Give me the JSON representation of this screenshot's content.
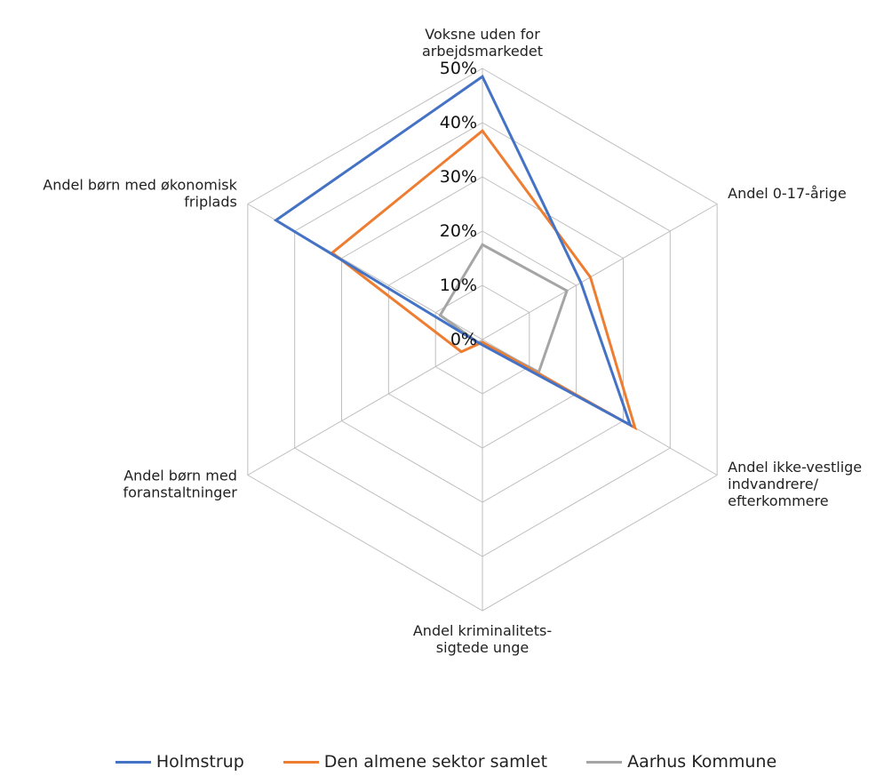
{
  "chart_data": {
    "type": "radar",
    "title": "",
    "axes": [
      [
        "Voksne uden for",
        "arbejdsmarkedet"
      ],
      [
        "Andel 0-17-årige"
      ],
      [
        "Andel ikke-vestlige",
        "indvandrere/",
        "efterkommere"
      ],
      [
        "Andel kriminalitets-",
        "sigtede unge"
      ],
      [
        "Andel børn med",
        "foranstaltninger"
      ],
      [
        "Andel børn med økonomisk",
        "friplads"
      ]
    ],
    "rlim": [
      0,
      50
    ],
    "ticks": [
      "0%",
      "10%",
      "20%",
      "30%",
      "40%",
      "50%"
    ],
    "grid": true,
    "legend": "bottom",
    "series": [
      {
        "name": "Holmstrup",
        "color": "#4472c4",
        "values": [
          48.5,
          21,
          31.5,
          1,
          1,
          44
        ]
      },
      {
        "name": "Den almene sektor samlet",
        "color": "#ed7d31",
        "values": [
          38.5,
          23,
          32.5,
          0.5,
          4.5,
          32
        ]
      },
      {
        "name": "Aarhus Kommune",
        "color": "#a5a5a5",
        "values": [
          17.5,
          18,
          12,
          0.5,
          1,
          9
        ]
      }
    ]
  }
}
